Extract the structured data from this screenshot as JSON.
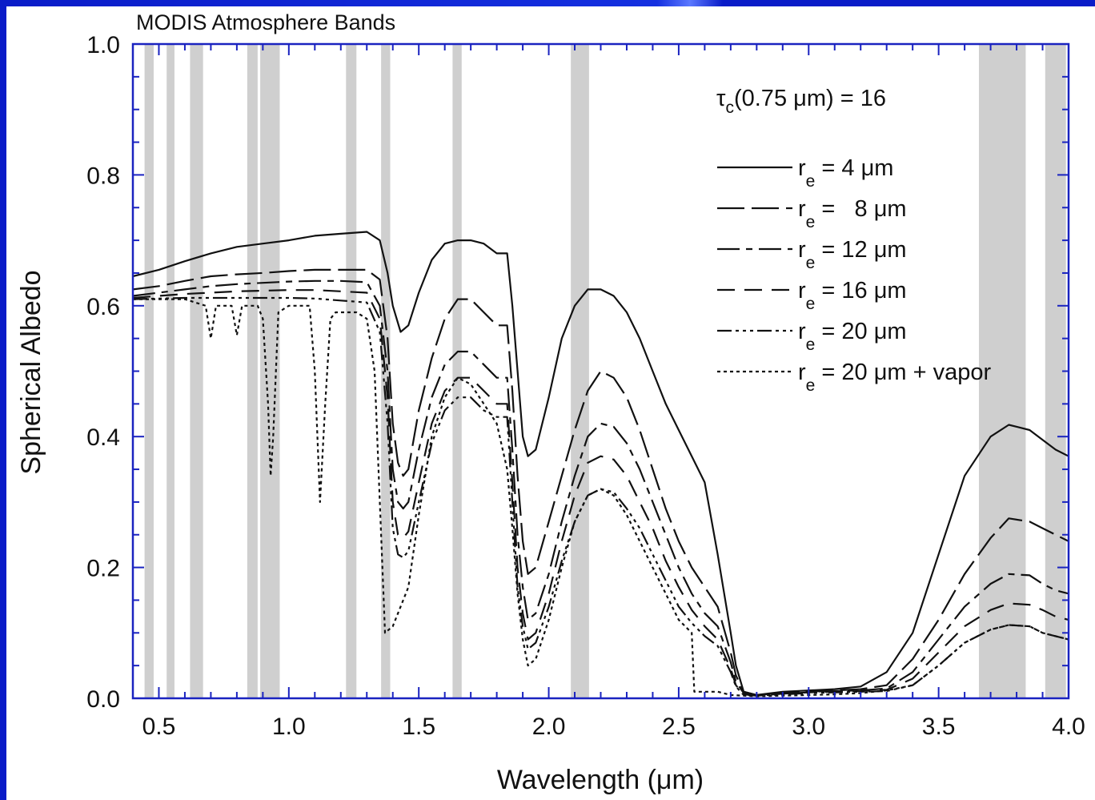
{
  "chart_data": {
    "type": "line",
    "title": "MODIS Atmosphere Bands",
    "xlabel": "Wavelength (μm)",
    "ylabel": "Spherical Albedo",
    "xlim": [
      0.4,
      4.0
    ],
    "ylim": [
      0.0,
      1.0
    ],
    "x_ticks": [
      "0.5",
      "1.0",
      "1.5",
      "2.0",
      "2.5",
      "3.0",
      "3.5",
      "4.0"
    ],
    "y_ticks": [
      "0.0",
      "0.2",
      "0.4",
      "0.6",
      "0.8",
      "1.0"
    ],
    "annotation": {
      "prefix": "τ",
      "subscript": "c",
      "text": "(0.75 μm) = 16"
    },
    "bands": [
      [
        0.445,
        0.48
      ],
      [
        0.53,
        0.56
      ],
      [
        0.62,
        0.67
      ],
      [
        0.84,
        0.88
      ],
      [
        0.89,
        0.965
      ],
      [
        1.22,
        1.26
      ],
      [
        1.355,
        1.39
      ],
      [
        1.63,
        1.665
      ],
      [
        2.085,
        2.155
      ],
      [
        3.655,
        3.835
      ],
      [
        3.91,
        3.99
      ]
    ],
    "band_color": "#cfcfcf",
    "series": [
      {
        "label": "= 4 μm",
        "dash": "",
        "x": [
          0.4,
          0.5,
          0.6,
          0.7,
          0.8,
          0.9,
          1.0,
          1.1,
          1.2,
          1.3,
          1.35,
          1.38,
          1.4,
          1.43,
          1.46,
          1.5,
          1.55,
          1.6,
          1.65,
          1.7,
          1.75,
          1.8,
          1.84,
          1.86,
          1.88,
          1.9,
          1.92,
          1.95,
          2.0,
          2.05,
          2.1,
          2.15,
          2.2,
          2.25,
          2.3,
          2.35,
          2.4,
          2.45,
          2.5,
          2.55,
          2.6,
          2.65,
          2.7,
          2.72,
          2.75,
          2.8,
          2.9,
          3.0,
          3.1,
          3.2,
          3.3,
          3.4,
          3.5,
          3.6,
          3.7,
          3.77,
          3.85,
          3.9,
          3.95,
          4.0
        ],
        "y": [
          0.645,
          0.655,
          0.668,
          0.68,
          0.69,
          0.695,
          0.7,
          0.707,
          0.71,
          0.713,
          0.7,
          0.65,
          0.6,
          0.56,
          0.57,
          0.62,
          0.67,
          0.695,
          0.7,
          0.7,
          0.695,
          0.68,
          0.68,
          0.6,
          0.5,
          0.4,
          0.37,
          0.38,
          0.46,
          0.55,
          0.6,
          0.625,
          0.625,
          0.615,
          0.59,
          0.55,
          0.5,
          0.45,
          0.41,
          0.37,
          0.33,
          0.22,
          0.1,
          0.05,
          0.01,
          0.005,
          0.01,
          0.012,
          0.014,
          0.018,
          0.04,
          0.1,
          0.22,
          0.34,
          0.4,
          0.418,
          0.41,
          0.395,
          0.38,
          0.37
        ]
      },
      {
        "label": "=   8 μm",
        "dash": "34,9",
        "x": [
          0.4,
          0.5,
          0.6,
          0.7,
          0.8,
          0.9,
          1.0,
          1.1,
          1.2,
          1.3,
          1.35,
          1.38,
          1.4,
          1.42,
          1.44,
          1.46,
          1.5,
          1.55,
          1.6,
          1.65,
          1.7,
          1.75,
          1.8,
          1.84,
          1.86,
          1.88,
          1.9,
          1.92,
          1.95,
          2.0,
          2.05,
          2.1,
          2.15,
          2.2,
          2.25,
          2.3,
          2.35,
          2.4,
          2.45,
          2.5,
          2.55,
          2.6,
          2.65,
          2.7,
          2.72,
          2.75,
          2.8,
          2.9,
          3.0,
          3.1,
          3.2,
          3.3,
          3.4,
          3.5,
          3.6,
          3.7,
          3.77,
          3.85,
          3.9,
          3.95,
          4.0
        ],
        "y": [
          0.625,
          0.63,
          0.638,
          0.645,
          0.648,
          0.65,
          0.653,
          0.655,
          0.655,
          0.655,
          0.64,
          0.55,
          0.42,
          0.36,
          0.34,
          0.35,
          0.44,
          0.52,
          0.58,
          0.61,
          0.61,
          0.59,
          0.57,
          0.57,
          0.47,
          0.34,
          0.24,
          0.19,
          0.2,
          0.27,
          0.34,
          0.41,
          0.47,
          0.5,
          0.49,
          0.46,
          0.41,
          0.35,
          0.29,
          0.24,
          0.2,
          0.17,
          0.14,
          0.07,
          0.035,
          0.01,
          0.005,
          0.008,
          0.01,
          0.012,
          0.014,
          0.02,
          0.06,
          0.12,
          0.19,
          0.245,
          0.275,
          0.27,
          0.26,
          0.25,
          0.24
        ]
      },
      {
        "label": "= 12 μm",
        "dash": "28,8,8,8",
        "x": [
          0.4,
          0.5,
          0.6,
          0.7,
          0.8,
          0.9,
          1.0,
          1.1,
          1.2,
          1.3,
          1.35,
          1.38,
          1.4,
          1.42,
          1.44,
          1.46,
          1.5,
          1.55,
          1.6,
          1.65,
          1.7,
          1.75,
          1.8,
          1.84,
          1.86,
          1.88,
          1.9,
          1.92,
          1.95,
          2.0,
          2.05,
          2.1,
          2.15,
          2.2,
          2.25,
          2.3,
          2.35,
          2.4,
          2.45,
          2.5,
          2.55,
          2.6,
          2.65,
          2.7,
          2.72,
          2.75,
          2.8,
          2.9,
          3.0,
          3.1,
          3.2,
          3.3,
          3.4,
          3.5,
          3.6,
          3.7,
          3.77,
          3.85,
          3.9,
          3.95,
          4.0
        ],
        "y": [
          0.615,
          0.62,
          0.625,
          0.63,
          0.633,
          0.635,
          0.637,
          0.638,
          0.638,
          0.636,
          0.6,
          0.5,
          0.35,
          0.3,
          0.29,
          0.3,
          0.38,
          0.46,
          0.51,
          0.53,
          0.53,
          0.51,
          0.49,
          0.49,
          0.38,
          0.25,
          0.17,
          0.12,
          0.13,
          0.19,
          0.27,
          0.34,
          0.4,
          0.42,
          0.415,
          0.39,
          0.35,
          0.3,
          0.25,
          0.2,
          0.16,
          0.13,
          0.11,
          0.055,
          0.025,
          0.008,
          0.005,
          0.008,
          0.01,
          0.011,
          0.012,
          0.015,
          0.04,
          0.09,
          0.14,
          0.175,
          0.19,
          0.188,
          0.175,
          0.165,
          0.16
        ]
      },
      {
        "label": "= 16 μm",
        "dash": "22,12",
        "x": [
          0.4,
          0.5,
          0.6,
          0.7,
          0.8,
          0.9,
          1.0,
          1.1,
          1.2,
          1.3,
          1.35,
          1.38,
          1.4,
          1.42,
          1.44,
          1.46,
          1.5,
          1.55,
          1.6,
          1.65,
          1.7,
          1.75,
          1.8,
          1.84,
          1.86,
          1.88,
          1.9,
          1.92,
          1.95,
          2.0,
          2.05,
          2.1,
          2.15,
          2.2,
          2.25,
          2.3,
          2.35,
          2.4,
          2.45,
          2.5,
          2.55,
          2.6,
          2.65,
          2.7,
          2.72,
          2.75,
          2.8,
          2.9,
          3.0,
          3.1,
          3.2,
          3.3,
          3.4,
          3.5,
          3.6,
          3.7,
          3.77,
          3.85,
          3.9,
          3.95,
          4.0
        ],
        "y": [
          0.612,
          0.615,
          0.618,
          0.62,
          0.622,
          0.623,
          0.624,
          0.624,
          0.622,
          0.62,
          0.58,
          0.46,
          0.3,
          0.25,
          0.245,
          0.255,
          0.33,
          0.42,
          0.47,
          0.49,
          0.49,
          0.47,
          0.45,
          0.45,
          0.33,
          0.2,
          0.13,
          0.09,
          0.1,
          0.16,
          0.24,
          0.31,
          0.36,
          0.37,
          0.365,
          0.34,
          0.3,
          0.26,
          0.21,
          0.17,
          0.135,
          0.11,
          0.09,
          0.045,
          0.02,
          0.006,
          0.004,
          0.007,
          0.009,
          0.01,
          0.011,
          0.013,
          0.03,
          0.07,
          0.11,
          0.135,
          0.145,
          0.143,
          0.135,
          0.125,
          0.12
        ]
      },
      {
        "label": "= 20 μm",
        "dash": "18,5,4,5,4,5,4,5",
        "x": [
          0.4,
          0.5,
          0.6,
          0.7,
          0.8,
          0.9,
          1.0,
          1.1,
          1.2,
          1.3,
          1.35,
          1.38,
          1.4,
          1.42,
          1.44,
          1.46,
          1.5,
          1.55,
          1.6,
          1.65,
          1.7,
          1.75,
          1.8,
          1.84,
          1.86,
          1.88,
          1.9,
          1.92,
          1.95,
          2.0,
          2.05,
          2.1,
          2.15,
          2.2,
          2.25,
          2.3,
          2.35,
          2.4,
          2.45,
          2.5,
          2.55,
          2.6,
          2.65,
          2.7,
          2.72,
          2.75,
          2.8,
          2.9,
          3.0,
          3.1,
          3.2,
          3.3,
          3.4,
          3.5,
          3.6,
          3.7,
          3.77,
          3.85,
          3.9,
          3.95,
          4.0
        ],
        "y": [
          0.61,
          0.611,
          0.612,
          0.612,
          0.612,
          0.612,
          0.612,
          0.611,
          0.608,
          0.605,
          0.56,
          0.42,
          0.26,
          0.22,
          0.215,
          0.225,
          0.3,
          0.39,
          0.44,
          0.46,
          0.46,
          0.44,
          0.43,
          0.43,
          0.3,
          0.17,
          0.11,
          0.075,
          0.085,
          0.14,
          0.21,
          0.27,
          0.31,
          0.32,
          0.315,
          0.29,
          0.26,
          0.22,
          0.18,
          0.14,
          0.115,
          0.095,
          0.08,
          0.04,
          0.018,
          0.005,
          0.004,
          0.006,
          0.008,
          0.009,
          0.01,
          0.011,
          0.02,
          0.05,
          0.085,
          0.105,
          0.112,
          0.11,
          0.1,
          0.095,
          0.09
        ]
      },
      {
        "label": "= 20 μm + vapor",
        "dash": "4,4",
        "x": [
          0.4,
          0.5,
          0.6,
          0.68,
          0.7,
          0.72,
          0.78,
          0.8,
          0.82,
          0.84,
          0.88,
          0.9,
          0.92,
          0.93,
          0.94,
          0.96,
          1.0,
          1.08,
          1.1,
          1.12,
          1.14,
          1.16,
          1.18,
          1.2,
          1.26,
          1.3,
          1.33,
          1.35,
          1.37,
          1.4,
          1.42,
          1.44,
          1.46,
          1.5,
          1.55,
          1.6,
          1.65,
          1.7,
          1.75,
          1.8,
          1.84,
          1.86,
          1.88,
          1.9,
          1.92,
          1.95,
          2.0,
          2.05,
          2.1,
          2.15,
          2.2,
          2.25,
          2.3,
          2.35,
          2.4,
          2.45,
          2.5,
          2.55,
          2.56,
          2.6,
          2.65,
          2.7,
          2.75,
          2.8,
          2.9,
          3.0,
          3.1,
          3.2,
          3.25,
          3.3,
          3.4,
          3.5,
          3.6,
          3.7,
          3.77,
          3.85,
          3.9,
          3.95,
          4.0
        ],
        "y": [
          0.61,
          0.61,
          0.61,
          0.6,
          0.55,
          0.6,
          0.6,
          0.555,
          0.6,
          0.6,
          0.6,
          0.58,
          0.45,
          0.34,
          0.4,
          0.59,
          0.6,
          0.6,
          0.5,
          0.3,
          0.45,
          0.58,
          0.59,
          0.59,
          0.59,
          0.58,
          0.5,
          0.3,
          0.1,
          0.11,
          0.13,
          0.15,
          0.17,
          0.28,
          0.4,
          0.46,
          0.49,
          0.48,
          0.45,
          0.42,
          0.35,
          0.26,
          0.16,
          0.09,
          0.05,
          0.06,
          0.12,
          0.2,
          0.27,
          0.31,
          0.32,
          0.31,
          0.28,
          0.24,
          0.2,
          0.16,
          0.12,
          0.1,
          0.01,
          0.01,
          0.01,
          0.005,
          0.004,
          0.003,
          0.004,
          0.005,
          0.006,
          0.008,
          0.01,
          0.012,
          0.02,
          0.05,
          0.085,
          0.105,
          0.112,
          0.11,
          0.1,
          0.095,
          0.09
        ]
      }
    ],
    "legend_position": "upper-right",
    "grid": false
  },
  "colors": {
    "page_frame": "#0a1cc8",
    "axes_frame": "#1a23c0",
    "ink": "#111111"
  }
}
